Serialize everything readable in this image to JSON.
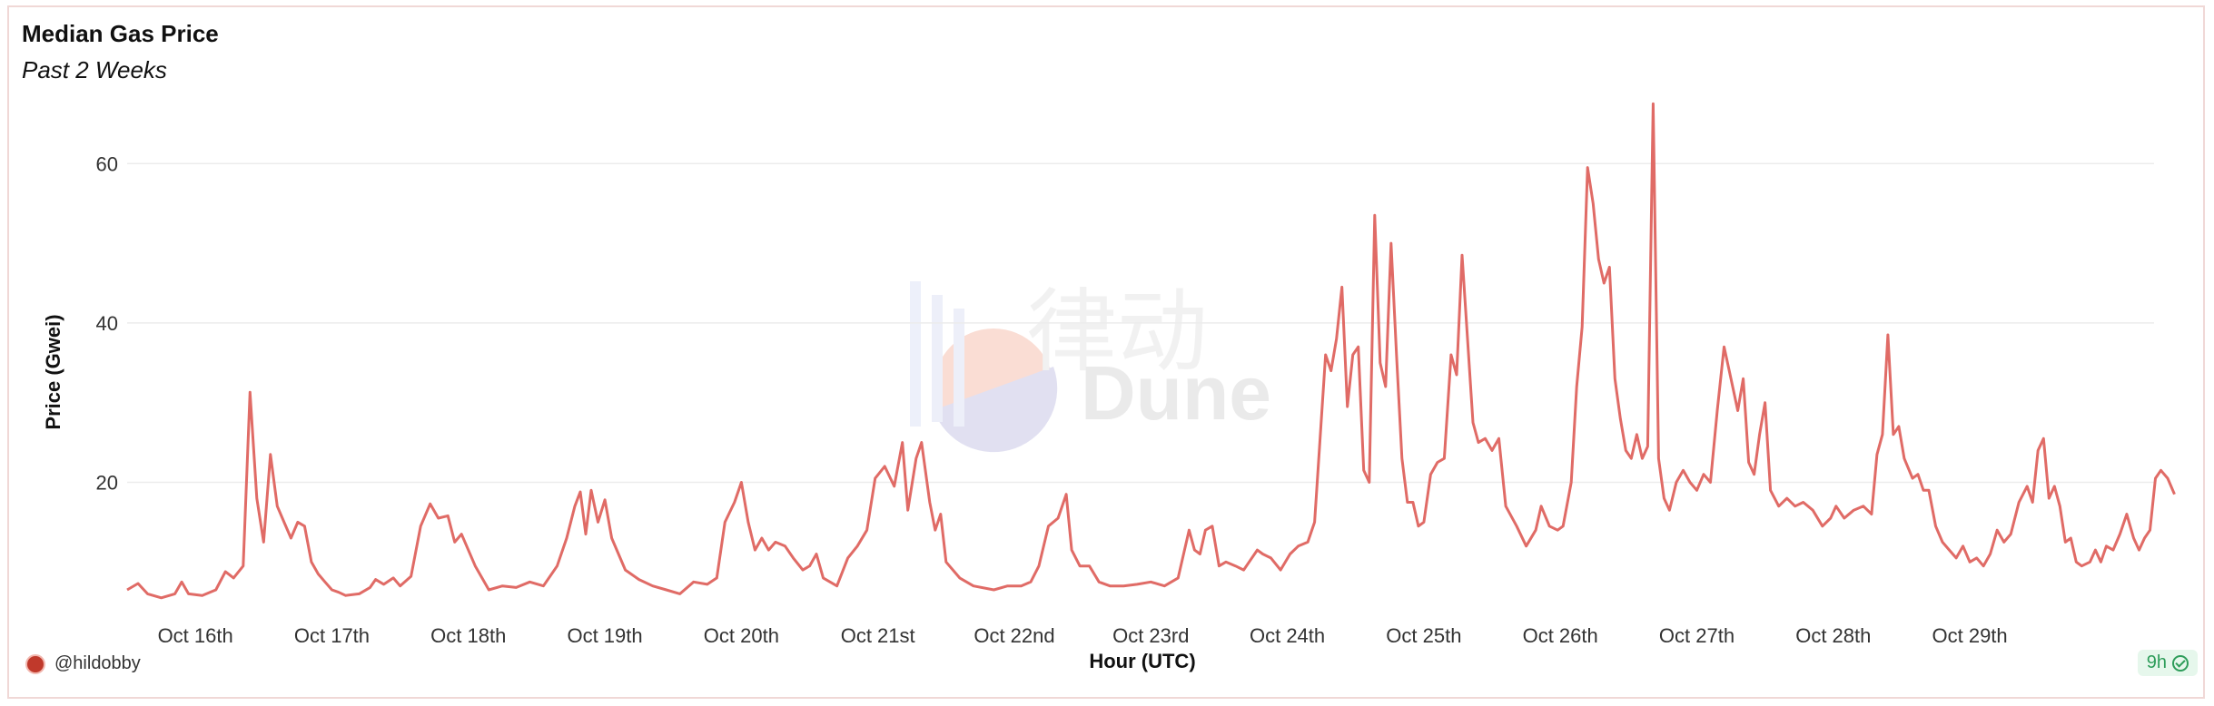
{
  "chart_data": {
    "type": "line",
    "title": "Median Gas Price",
    "subtitle": "Past 2 Weeks",
    "xlabel": "Hour (UTC)",
    "ylabel": "Price (Gwei)",
    "ylim": [
      4,
      68
    ],
    "xlim": [
      0,
      14.85
    ],
    "yticks": [
      20,
      40,
      60
    ],
    "xticks": [
      {
        "label": "Oct 16th",
        "x": 0.5
      },
      {
        "label": "Oct 17th",
        "x": 1.5
      },
      {
        "label": "Oct 18th",
        "x": 2.5
      },
      {
        "label": "Oct 19th",
        "x": 3.5
      },
      {
        "label": "Oct 20th",
        "x": 4.5
      },
      {
        "label": "Oct 21st",
        "x": 5.5
      },
      {
        "label": "Oct 22nd",
        "x": 6.5
      },
      {
        "label": "Oct 23rd",
        "x": 7.5
      },
      {
        "label": "Oct 24th",
        "x": 8.5
      },
      {
        "label": "Oct 25th",
        "x": 9.5
      },
      {
        "label": "Oct 26th",
        "x": 10.5
      },
      {
        "label": "Oct 27th",
        "x": 11.5
      },
      {
        "label": "Oct 28th",
        "x": 12.5
      },
      {
        "label": "Oct 29th",
        "x": 13.5
      }
    ],
    "grid": true,
    "series": [
      {
        "color": "#e06b66",
        "points": [
          [
            0.0,
            6.5
          ],
          [
            0.08,
            7.3
          ],
          [
            0.15,
            6.0
          ],
          [
            0.25,
            5.5
          ],
          [
            0.35,
            6.0
          ],
          [
            0.4,
            7.5
          ],
          [
            0.45,
            6.0
          ],
          [
            0.55,
            5.8
          ],
          [
            0.65,
            6.5
          ],
          [
            0.72,
            8.8
          ],
          [
            0.78,
            8.0
          ],
          [
            0.85,
            9.5
          ],
          [
            0.9,
            31.3
          ],
          [
            0.95,
            18.0
          ],
          [
            1.0,
            12.5
          ],
          [
            1.05,
            23.5
          ],
          [
            1.1,
            17.0
          ],
          [
            1.15,
            15.0
          ],
          [
            1.2,
            13.0
          ],
          [
            1.25,
            15.0
          ],
          [
            1.3,
            14.5
          ],
          [
            1.35,
            10.0
          ],
          [
            1.4,
            8.5
          ],
          [
            1.45,
            7.5
          ],
          [
            1.5,
            6.5
          ],
          [
            1.55,
            6.2
          ],
          [
            1.6,
            5.8
          ],
          [
            1.7,
            6.0
          ],
          [
            1.78,
            6.8
          ],
          [
            1.82,
            7.8
          ],
          [
            1.88,
            7.2
          ],
          [
            1.95,
            8.0
          ],
          [
            2.0,
            7.0
          ],
          [
            2.08,
            8.2
          ],
          [
            2.15,
            14.5
          ],
          [
            2.22,
            17.3
          ],
          [
            2.28,
            15.5
          ],
          [
            2.35,
            15.8
          ],
          [
            2.4,
            12.5
          ],
          [
            2.45,
            13.5
          ],
          [
            2.55,
            9.5
          ],
          [
            2.65,
            6.5
          ],
          [
            2.75,
            7.0
          ],
          [
            2.85,
            6.8
          ],
          [
            2.95,
            7.5
          ],
          [
            3.05,
            7.0
          ],
          [
            3.15,
            9.5
          ],
          [
            3.22,
            13.0
          ],
          [
            3.28,
            17.0
          ],
          [
            3.32,
            18.8
          ],
          [
            3.36,
            13.5
          ],
          [
            3.4,
            19.0
          ],
          [
            3.45,
            15.0
          ],
          [
            3.5,
            17.8
          ],
          [
            3.55,
            13.0
          ],
          [
            3.65,
            9.0
          ],
          [
            3.75,
            7.8
          ],
          [
            3.85,
            7.0
          ],
          [
            3.95,
            6.5
          ],
          [
            4.05,
            6.0
          ],
          [
            4.15,
            7.5
          ],
          [
            4.25,
            7.2
          ],
          [
            4.32,
            8.0
          ],
          [
            4.38,
            15.0
          ],
          [
            4.45,
            17.5
          ],
          [
            4.5,
            20.0
          ],
          [
            4.55,
            15.0
          ],
          [
            4.6,
            11.5
          ],
          [
            4.65,
            13.0
          ],
          [
            4.7,
            11.5
          ],
          [
            4.75,
            12.5
          ],
          [
            4.82,
            12.0
          ],
          [
            4.88,
            10.5
          ],
          [
            4.95,
            9.0
          ],
          [
            5.0,
            9.5
          ],
          [
            5.05,
            11.0
          ],
          [
            5.1,
            8.0
          ],
          [
            5.2,
            7.0
          ],
          [
            5.28,
            10.5
          ],
          [
            5.35,
            12.0
          ],
          [
            5.42,
            14.0
          ],
          [
            5.48,
            20.5
          ],
          [
            5.55,
            22.0
          ],
          [
            5.62,
            19.5
          ],
          [
            5.68,
            25.0
          ],
          [
            5.72,
            16.5
          ],
          [
            5.78,
            23.0
          ],
          [
            5.82,
            25.0
          ],
          [
            5.88,
            17.5
          ],
          [
            5.92,
            14.0
          ],
          [
            5.96,
            16.0
          ],
          [
            6.0,
            10.0
          ],
          [
            6.1,
            8.0
          ],
          [
            6.2,
            7.0
          ],
          [
            6.35,
            6.5
          ],
          [
            6.45,
            7.0
          ],
          [
            6.55,
            7.0
          ],
          [
            6.62,
            7.5
          ],
          [
            6.68,
            9.5
          ],
          [
            6.75,
            14.5
          ],
          [
            6.82,
            15.5
          ],
          [
            6.88,
            18.5
          ],
          [
            6.92,
            11.5
          ],
          [
            6.98,
            9.5
          ],
          [
            7.05,
            9.5
          ],
          [
            7.12,
            7.5
          ],
          [
            7.2,
            7.0
          ],
          [
            7.3,
            7.0
          ],
          [
            7.4,
            7.2
          ],
          [
            7.5,
            7.5
          ],
          [
            7.6,
            7.0
          ],
          [
            7.7,
            8.0
          ],
          [
            7.78,
            14.0
          ],
          [
            7.82,
            11.5
          ],
          [
            7.86,
            11.0
          ],
          [
            7.9,
            14.0
          ],
          [
            7.95,
            14.5
          ],
          [
            8.0,
            9.5
          ],
          [
            8.05,
            10.0
          ],
          [
            8.12,
            9.5
          ],
          [
            8.18,
            9.0
          ],
          [
            8.22,
            10.0
          ],
          [
            8.28,
            11.5
          ],
          [
            8.32,
            11.0
          ],
          [
            8.38,
            10.5
          ],
          [
            8.45,
            9.0
          ],
          [
            8.52,
            11.0
          ],
          [
            8.58,
            12.0
          ],
          [
            8.65,
            12.5
          ],
          [
            8.7,
            15.0
          ],
          [
            8.78,
            36.0
          ],
          [
            8.82,
            34.0
          ],
          [
            8.86,
            38.0
          ],
          [
            8.9,
            44.5
          ],
          [
            8.94,
            29.5
          ],
          [
            8.98,
            36.0
          ],
          [
            9.02,
            37.0
          ],
          [
            9.06,
            21.5
          ],
          [
            9.1,
            20.0
          ],
          [
            9.14,
            53.5
          ],
          [
            9.18,
            35.0
          ],
          [
            9.22,
            32.0
          ],
          [
            9.26,
            50.0
          ],
          [
            9.3,
            36.0
          ],
          [
            9.34,
            23.0
          ],
          [
            9.38,
            17.5
          ],
          [
            9.42,
            17.5
          ],
          [
            9.46,
            14.5
          ],
          [
            9.5,
            15.0
          ],
          [
            9.55,
            21.0
          ],
          [
            9.6,
            22.5
          ],
          [
            9.65,
            23.0
          ],
          [
            9.7,
            36.0
          ],
          [
            9.74,
            33.5
          ],
          [
            9.78,
            48.5
          ],
          [
            9.82,
            38.0
          ],
          [
            9.86,
            27.5
          ],
          [
            9.9,
            25.0
          ],
          [
            9.95,
            25.5
          ],
          [
            10.0,
            24.0
          ],
          [
            10.05,
            25.5
          ],
          [
            10.1,
            17.0
          ],
          [
            10.18,
            14.5
          ],
          [
            10.25,
            12.0
          ],
          [
            10.32,
            14.0
          ],
          [
            10.36,
            17.0
          ],
          [
            10.42,
            14.5
          ],
          [
            10.48,
            14.0
          ],
          [
            10.52,
            14.5
          ],
          [
            10.58,
            20.0
          ],
          [
            10.62,
            32.0
          ],
          [
            10.66,
            39.5
          ],
          [
            10.7,
            59.5
          ],
          [
            10.74,
            55.0
          ],
          [
            10.78,
            48.0
          ],
          [
            10.82,
            45.0
          ],
          [
            10.86,
            47.0
          ],
          [
            10.9,
            33.0
          ],
          [
            10.94,
            28.0
          ],
          [
            10.98,
            24.0
          ],
          [
            11.02,
            23.0
          ],
          [
            11.06,
            26.0
          ],
          [
            11.1,
            23.0
          ],
          [
            11.14,
            24.5
          ],
          [
            11.18,
            67.5
          ],
          [
            11.22,
            23.0
          ],
          [
            11.26,
            18.0
          ],
          [
            11.3,
            16.5
          ],
          [
            11.35,
            20.0
          ],
          [
            11.4,
            21.5
          ],
          [
            11.45,
            20.0
          ],
          [
            11.5,
            19.0
          ],
          [
            11.55,
            21.0
          ],
          [
            11.6,
            20.0
          ],
          [
            11.65,
            29.0
          ],
          [
            11.7,
            37.0
          ],
          [
            11.75,
            33.0
          ],
          [
            11.8,
            29.0
          ],
          [
            11.84,
            33.0
          ],
          [
            11.88,
            22.5
          ],
          [
            11.92,
            21.0
          ],
          [
            11.96,
            26.0
          ],
          [
            12.0,
            30.0
          ],
          [
            12.04,
            19.0
          ],
          [
            12.1,
            17.0
          ],
          [
            12.16,
            18.0
          ],
          [
            12.22,
            17.0
          ],
          [
            12.28,
            17.5
          ],
          [
            12.35,
            16.5
          ],
          [
            12.42,
            14.5
          ],
          [
            12.48,
            15.5
          ],
          [
            12.52,
            17.0
          ],
          [
            12.58,
            15.5
          ],
          [
            12.65,
            16.5
          ],
          [
            12.72,
            17.0
          ],
          [
            12.78,
            16.0
          ],
          [
            12.82,
            23.5
          ],
          [
            12.86,
            26.0
          ],
          [
            12.9,
            38.5
          ],
          [
            12.94,
            26.0
          ],
          [
            12.98,
            27.0
          ],
          [
            13.02,
            23.0
          ],
          [
            13.08,
            20.5
          ],
          [
            13.12,
            21.0
          ],
          [
            13.16,
            19.0
          ],
          [
            13.2,
            19.0
          ],
          [
            13.25,
            14.5
          ],
          [
            13.3,
            12.5
          ],
          [
            13.35,
            11.5
          ],
          [
            13.4,
            10.5
          ],
          [
            13.45,
            12.0
          ],
          [
            13.5,
            10.0
          ],
          [
            13.55,
            10.5
          ],
          [
            13.6,
            9.5
          ],
          [
            13.65,
            11.0
          ],
          [
            13.7,
            14.0
          ],
          [
            13.75,
            12.5
          ],
          [
            13.8,
            13.5
          ],
          [
            13.86,
            17.5
          ],
          [
            13.92,
            19.5
          ],
          [
            13.96,
            17.5
          ],
          [
            14.0,
            24.0
          ],
          [
            14.04,
            25.5
          ],
          [
            14.08,
            18.0
          ],
          [
            14.12,
            19.5
          ],
          [
            14.16,
            17.0
          ],
          [
            14.2,
            12.5
          ],
          [
            14.24,
            13.0
          ],
          [
            14.28,
            10.0
          ],
          [
            14.32,
            9.5
          ],
          [
            14.38,
            10.0
          ],
          [
            14.42,
            11.5
          ],
          [
            14.46,
            10.0
          ],
          [
            14.5,
            12.0
          ],
          [
            14.55,
            11.5
          ],
          [
            14.6,
            13.5
          ],
          [
            14.65,
            16.0
          ],
          [
            14.7,
            13.0
          ],
          [
            14.74,
            11.5
          ],
          [
            14.78,
            13.0
          ],
          [
            14.82,
            14.0
          ],
          [
            14.86,
            20.5
          ],
          [
            14.9,
            21.5
          ],
          [
            14.95,
            20.5
          ],
          [
            15.0,
            18.5
          ]
        ]
      }
    ]
  },
  "footer": {
    "author": "@hildobby",
    "refresh": "9h"
  },
  "watermark": {
    "text_cn": "律动",
    "text_en": "Dune"
  }
}
